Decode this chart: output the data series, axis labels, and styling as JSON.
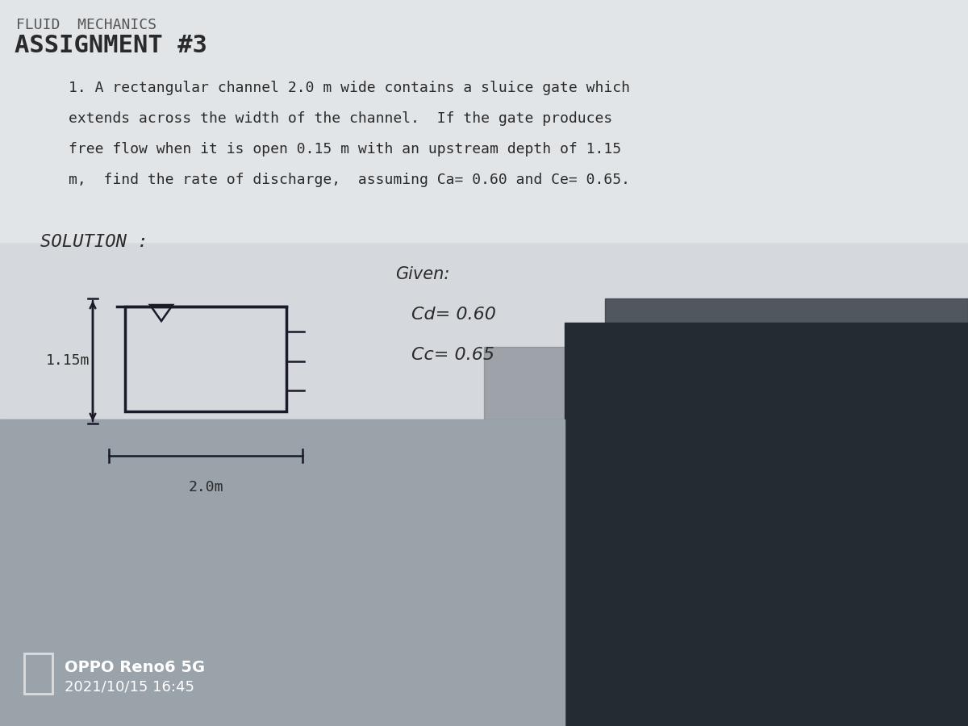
{
  "title": "ASSIGNMENT #3",
  "problem_line1": "1. A rectangular channel 2.0 m wide contains a sluice gate which",
  "problem_line2": "extends across the width of the channel.  If the gate produces",
  "problem_line3": "free flow when it is open 0.15 m with an upstream depth of 1.15",
  "problem_line4": "m,  find the rate of discharge,  assuming Ca= 0.60 and Ce= 0.65.",
  "solution_label": "SOLUTION :",
  "given_label": "Given:",
  "cd_label": "Cd= 0.60",
  "cc_label": "Cc= 0.65",
  "depth_label": "1.15m",
  "width_label": "2.0m",
  "camera_brand": "OPPO Reno6 5G",
  "date_label": "2021/10/15 16:45",
  "bg_paper": "#d8dce0",
  "bg_shadow_left": "#a8adb5",
  "bg_shadow_right": "#404850",
  "text_color": "#2a2a2a",
  "sketch_color": "#1a1a2a",
  "watermark_color": "#ffffff"
}
